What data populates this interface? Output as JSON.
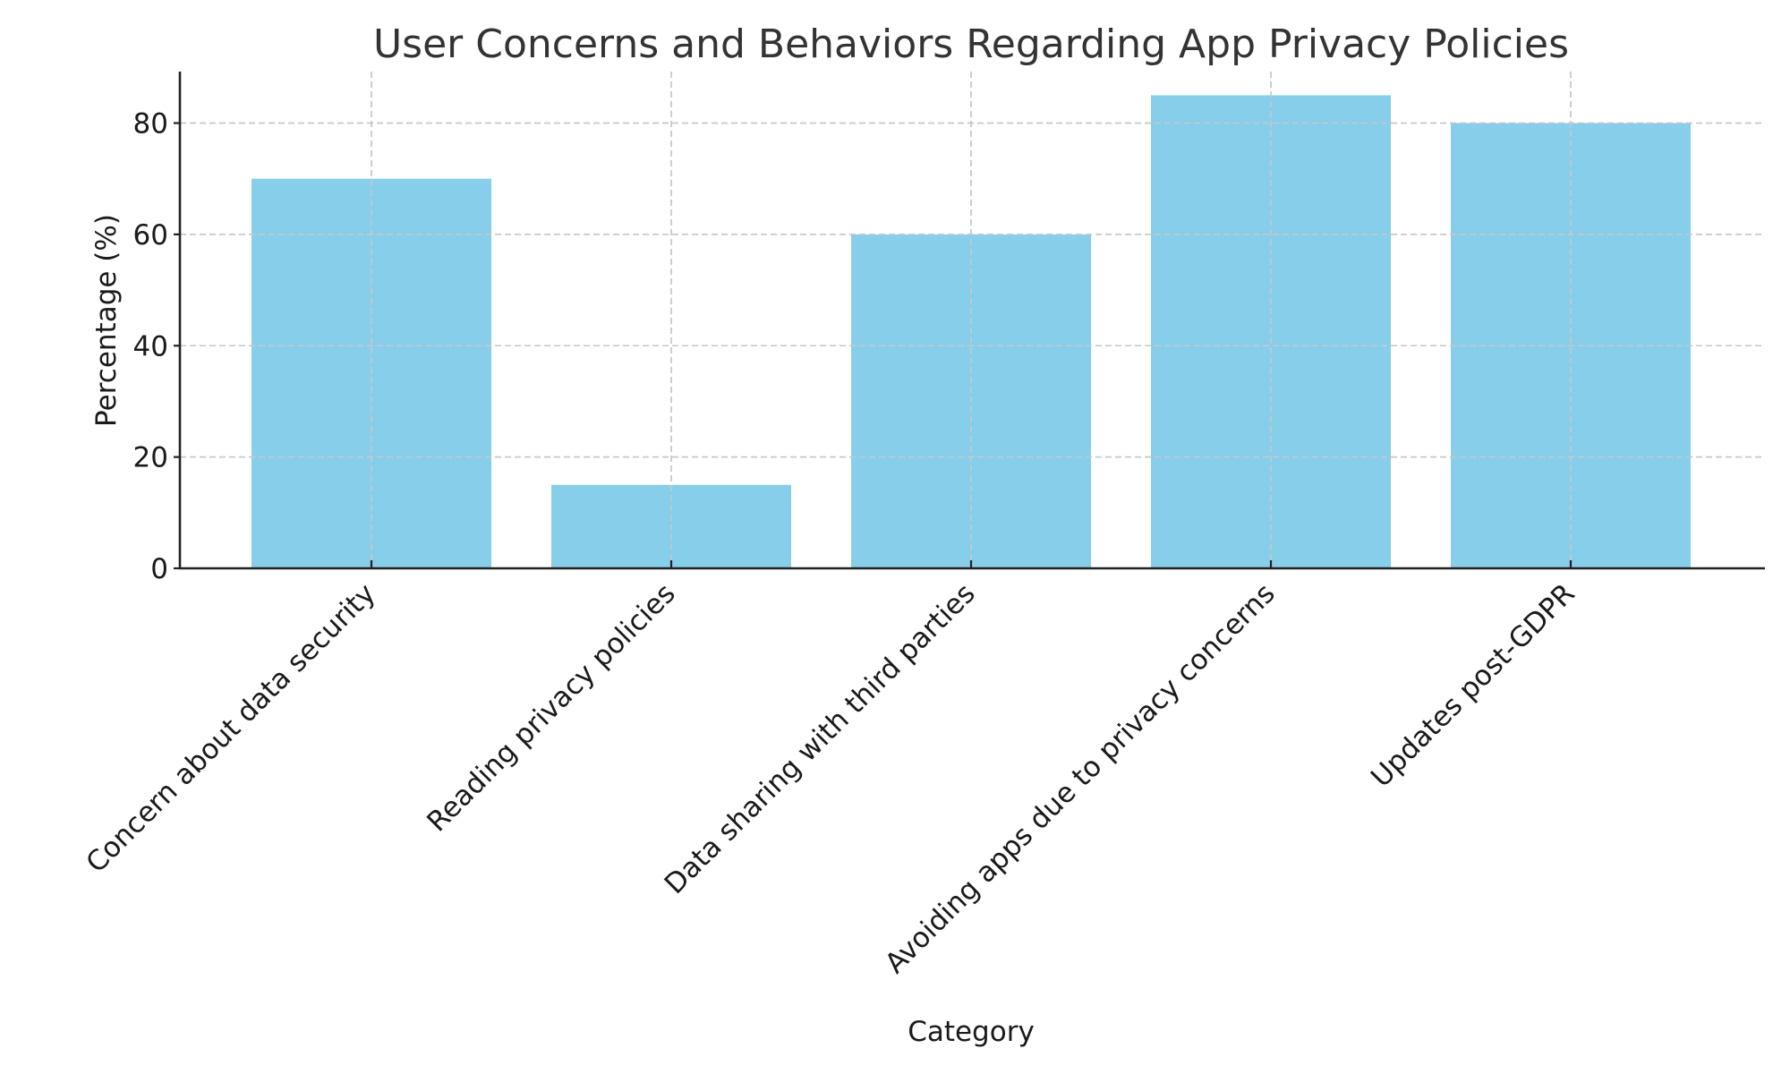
{
  "chart_data": {
    "type": "bar",
    "title": "User Concerns and Behaviors Regarding App Privacy Policies",
    "xlabel": "Category",
    "ylabel": "Percentage (%)",
    "categories": [
      "Concern about data security",
      "Reading privacy policies",
      "Data sharing with third parties",
      "Avoiding apps due to privacy concerns",
      "Updates post-GDPR"
    ],
    "values": [
      70,
      15,
      60,
      85,
      80
    ],
    "ylim": [
      0,
      89.25
    ],
    "yticks": [
      0,
      20,
      40,
      60,
      80
    ],
    "ytick_labels": [
      "0",
      "20",
      "40",
      "60",
      "80"
    ],
    "xtick_rotation": 45,
    "grid": true,
    "grid_style": "dashed",
    "legend": null,
    "bar_color": "#87CEEB"
  }
}
